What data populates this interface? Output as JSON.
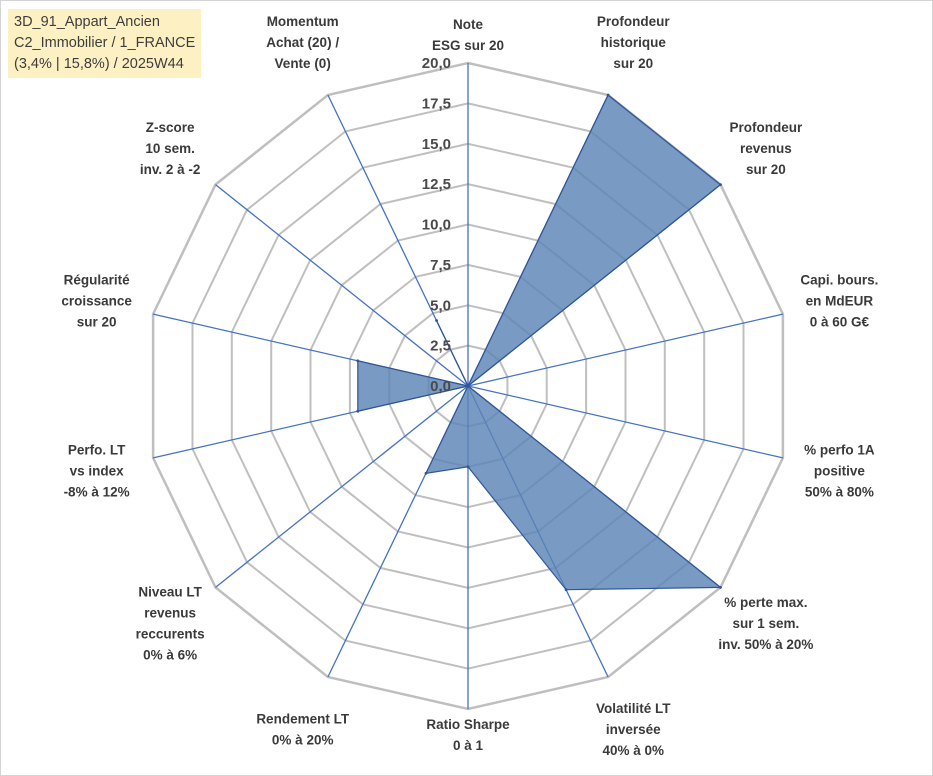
{
  "title_box": {
    "line1": "3D_91_Appart_Ancien",
    "line2": "C2_Immobilier / 1_FRANCE",
    "line3": "(3,4% | 15,8%) / 2025W44"
  },
  "colors": {
    "grid": "#bfbfbf",
    "spoke": "#4472c4",
    "fill": "#5b84b6",
    "fill_opacity": 0.82,
    "outline": "#2f5597",
    "title_bg": "#fdf1c4"
  },
  "chart_data": {
    "type": "radar",
    "rmax": 20,
    "tick_step": 2.5,
    "ticks": [
      "0,0",
      "2,5",
      "5,0",
      "7,5",
      "10,0",
      "12,5",
      "15,0",
      "17,5",
      "20,0"
    ],
    "categories": [
      [
        "Note",
        "ESG sur 20"
      ],
      [
        "Profondeur",
        "historique",
        "sur 20"
      ],
      [
        "Profondeur",
        "revenus",
        "sur 20"
      ],
      [
        "Capi. bours.",
        "en MdEUR",
        "0 à 60 G€"
      ],
      [
        "% perfo 1A",
        "positive",
        "50% à 80%"
      ],
      [
        "% perte max.",
        "sur 1 sem.",
        "inv. 50% à 20%"
      ],
      [
        "Volatilité LT",
        "inversée",
        "40% à 0%"
      ],
      [
        "Ratio Sharpe",
        "0 à 1"
      ],
      [
        "Rendement LT",
        "0% à 20%"
      ],
      [
        "Niveau LT",
        "revenus",
        "reccurents",
        "0% à 6%"
      ],
      [
        "Perfo. LT",
        "vs index",
        "-8% à 12%"
      ],
      [
        "Régularité",
        "croissance",
        "sur 20"
      ],
      [
        "Z-score",
        "10 sem.",
        "inv. 2 à -2"
      ],
      [
        "Momentum",
        "Achat (20) /",
        "Vente (0)"
      ]
    ],
    "series": [
      {
        "values": [
          0,
          20,
          20,
          0,
          0,
          20,
          14,
          5,
          6,
          0,
          7,
          7,
          0,
          4.5
        ]
      }
    ],
    "grid": true
  }
}
